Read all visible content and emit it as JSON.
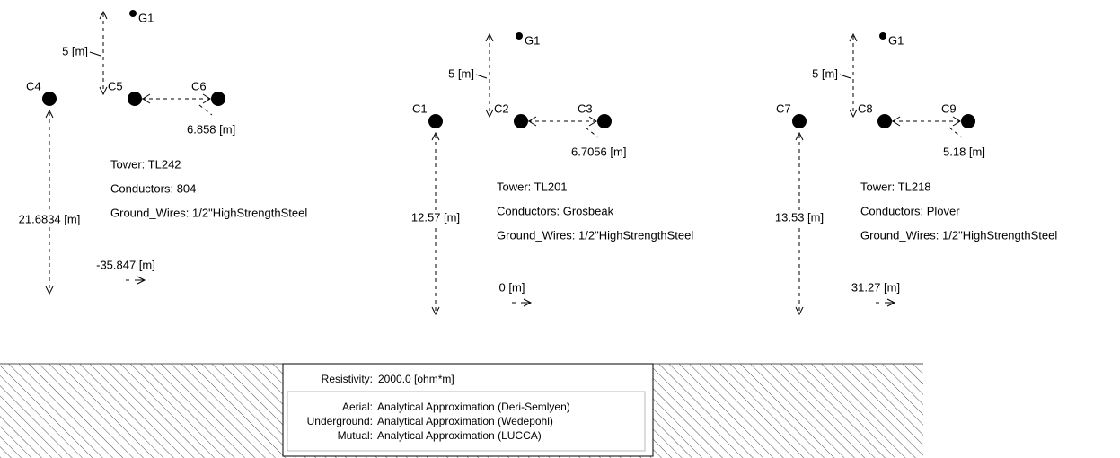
{
  "towers": [
    {
      "ground_wire": "G1",
      "conductors": [
        "C4",
        "C5",
        "C6"
      ],
      "vertical_spacing": "5 [m]",
      "horizontal_spacing": "6.858 [m]",
      "height": "21.6834 [m]",
      "offset": "-35.847 [m]",
      "info": [
        "Tower: TL242",
        "Conductors: 804",
        "Ground_Wires: 1/2\"HighStrengthSteel"
      ]
    },
    {
      "ground_wire": "G1",
      "conductors": [
        "C1",
        "C2",
        "C3"
      ],
      "vertical_spacing": "5 [m]",
      "horizontal_spacing": "6.7056 [m]",
      "height": "12.57 [m]",
      "offset": "0 [m]",
      "info": [
        "Tower: TL201",
        "Conductors: Grosbeak",
        "Ground_Wires: 1/2\"HighStrengthSteel"
      ]
    },
    {
      "ground_wire": "G1",
      "conductors": [
        "C7",
        "C8",
        "C9"
      ],
      "vertical_spacing": "5 [m]",
      "horizontal_spacing": "5.18 [m]",
      "height": "13.53 [m]",
      "offset": "31.27 [m]",
      "info": [
        "Tower: TL218",
        "Conductors: Plover",
        "Ground_Wires: 1/2\"HighStrengthSteel"
      ]
    }
  ],
  "ground": {
    "resistivity_label": "Resistivity:",
    "resistivity": "2000.0 [ohm*m]",
    "models": [
      {
        "label": "Aerial:",
        "value": "Analytical Approximation (Deri-Semlyen)"
      },
      {
        "label": "Underground:",
        "value": "Analytical Approximation (Wedepohl)"
      },
      {
        "label": "Mutual:",
        "value": "Analytical Approximation (LUCCA)"
      }
    ]
  }
}
